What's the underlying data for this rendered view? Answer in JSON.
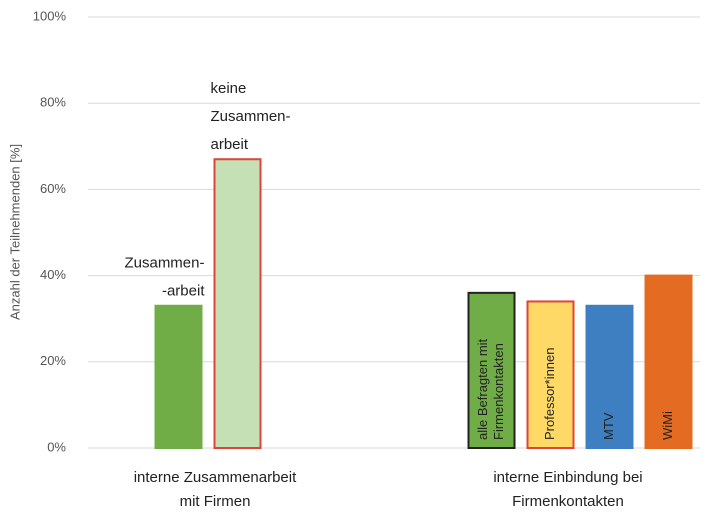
{
  "chart_data": {
    "type": "grouped-bar",
    "ylabel": "Anzahl der Teilnehmenden [%]",
    "ylim": [
      0,
      100
    ],
    "yticks": [
      {
        "value": 0,
        "label": "0%"
      },
      {
        "value": 20,
        "label": "20%"
      },
      {
        "value": 40,
        "label": "40%"
      },
      {
        "value": 60,
        "label": "60%"
      },
      {
        "value": 80,
        "label": "80%"
      },
      {
        "value": 100,
        "label": "100%"
      }
    ],
    "grid": true,
    "categories": [
      {
        "label": [
          "interne Zusammenarbeit",
          "mit Firmen"
        ],
        "bars": [
          {
            "name": [
              "Zusammen-",
              "-arbeit"
            ],
            "value": 33,
            "color": "#70ad47",
            "border": "#70ad47"
          },
          {
            "name": [
              "keine",
              "Zusammen-",
              "arbeit"
            ],
            "value": 67,
            "color": "#c5e0b4",
            "border": "#e0433a"
          }
        ]
      },
      {
        "label": [
          "interne Einbindung bei",
          "Firmenkontakten"
        ],
        "bars": [
          {
            "name": [
              "alle Befragten mit",
              "Firmenkontakten"
            ],
            "value": 36,
            "color": "#70ad47",
            "border": "#222222"
          },
          {
            "name": [
              "Professor*innen"
            ],
            "value": 34,
            "color": "#ffd966",
            "border": "#e0433a"
          },
          {
            "name": [
              "MTV"
            ],
            "value": 33,
            "color": "#3d7fc1",
            "border": "#3d7fc1"
          },
          {
            "name": [
              "WiMi"
            ],
            "value": 40,
            "color": "#e36c22",
            "border": "#e36c22"
          }
        ]
      }
    ]
  }
}
